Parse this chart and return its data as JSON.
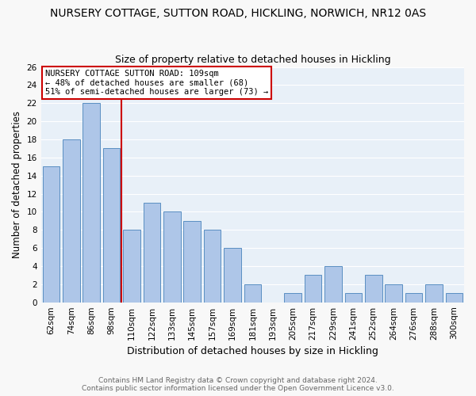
{
  "title": "NURSERY COTTAGE, SUTTON ROAD, HICKLING, NORWICH, NR12 0AS",
  "subtitle": "Size of property relative to detached houses in Hickling",
  "xlabel": "Distribution of detached houses by size in Hickling",
  "ylabel": "Number of detached properties",
  "categories": [
    "62sqm",
    "74sqm",
    "86sqm",
    "98sqm",
    "110sqm",
    "122sqm",
    "133sqm",
    "145sqm",
    "157sqm",
    "169sqm",
    "181sqm",
    "193sqm",
    "205sqm",
    "217sqm",
    "229sqm",
    "241sqm",
    "252sqm",
    "264sqm",
    "276sqm",
    "288sqm",
    "300sqm"
  ],
  "values": [
    15,
    18,
    22,
    17,
    8,
    11,
    10,
    9,
    8,
    6,
    2,
    0,
    1,
    3,
    4,
    1,
    3,
    2,
    1,
    2,
    1
  ],
  "bar_color": "#aec6e8",
  "bar_edge_color": "#5a8fc2",
  "reference_line_color": "#cc0000",
  "annotation_text": "NURSERY COTTAGE SUTTON ROAD: 109sqm\n← 48% of detached houses are smaller (68)\n51% of semi-detached houses are larger (73) →",
  "annotation_box_color": "#ffffff",
  "annotation_box_edge_color": "#cc0000",
  "ylim": [
    0,
    26
  ],
  "yticks": [
    0,
    2,
    4,
    6,
    8,
    10,
    12,
    14,
    16,
    18,
    20,
    22,
    24,
    26
  ],
  "footer_line1": "Contains HM Land Registry data © Crown copyright and database right 2024.",
  "footer_line2": "Contains public sector information licensed under the Open Government Licence v3.0.",
  "background_color": "#e8f0f8",
  "grid_color": "#ffffff",
  "title_fontsize": 10,
  "subtitle_fontsize": 9,
  "tick_fontsize": 7.5,
  "ylabel_fontsize": 8.5,
  "footer_fontsize": 6.5,
  "footer_color": "#666666"
}
